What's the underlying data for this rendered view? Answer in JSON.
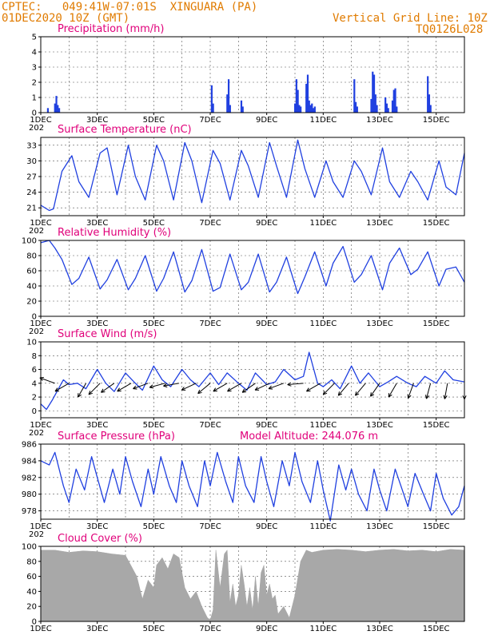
{
  "header": {
    "line1": "CPTEC:   049:41W-07:01S  XINGUARA (PA)",
    "line2": "01DEC2020 10Z (GMT)",
    "grid_note": "Vertical Grid Line: 10Z",
    "code": "TQ0126L028",
    "model_altitude": "Model Altitude: 244.076  m"
  },
  "colors": {
    "line": "#2040e0",
    "bar": "#2040e0",
    "cloud": "#a8a8a8",
    "title": "#e0007a",
    "header": "#e07b00"
  },
  "x_ticks": [
    "1DEC",
    "3DEC",
    "5DEC",
    "7DEC",
    "9DEC",
    "11DEC",
    "13DEC",
    "15DEC"
  ],
  "x_year_fragment": "202",
  "chart_data": [
    {
      "type": "bar",
      "title": "Precipitation (mm/h)",
      "xlim_days": [
        1.0,
        16.0
      ],
      "ylim": [
        0,
        5
      ],
      "yticks": [
        0,
        1,
        2,
        3,
        4,
        5
      ],
      "x": [
        1.25,
        1.5,
        1.55,
        1.6,
        1.65,
        7.05,
        7.1,
        7.6,
        7.65,
        7.7,
        8.1,
        8.15,
        10.0,
        10.05,
        10.1,
        10.15,
        10.2,
        10.4,
        10.45,
        10.5,
        10.55,
        10.6,
        10.65,
        10.7,
        12.1,
        12.15,
        12.2,
        12.7,
        12.75,
        12.8,
        12.85,
        12.9,
        13.2,
        13.25,
        13.3,
        13.45,
        13.5,
        13.55,
        13.6,
        14.7,
        14.75,
        14.8
      ],
      "values": [
        0.3,
        0.6,
        1.1,
        0.5,
        0.3,
        1.8,
        0.6,
        1.2,
        2.2,
        0.5,
        0.8,
        0.4,
        0.6,
        2.2,
        1.5,
        0.5,
        0.4,
        1.9,
        2.5,
        0.8,
        0.5,
        0.6,
        0.3,
        0.4,
        2.2,
        0.7,
        0.4,
        0.9,
        2.7,
        2.5,
        1.2,
        0.5,
        1.0,
        0.6,
        0.3,
        0.8,
        1.5,
        1.6,
        0.4,
        2.4,
        1.2,
        0.5
      ]
    },
    {
      "type": "line",
      "title": "Surface Temperature (nC)",
      "xlim_days": [
        1.0,
        16.0
      ],
      "ylim": [
        19.5,
        34.5
      ],
      "yticks": [
        21,
        24,
        27,
        30,
        33
      ],
      "x": [
        1.0,
        1.3,
        1.45,
        1.75,
        2.1,
        2.35,
        2.7,
        3.1,
        3.35,
        3.7,
        4.1,
        4.35,
        4.7,
        5.1,
        5.35,
        5.7,
        6.1,
        6.35,
        6.7,
        7.1,
        7.35,
        7.7,
        8.1,
        8.35,
        8.7,
        9.1,
        9.35,
        9.7,
        10.1,
        10.35,
        10.7,
        11.1,
        11.35,
        11.7,
        12.1,
        12.35,
        12.7,
        13.1,
        13.35,
        13.7,
        14.1,
        14.35,
        14.7,
        15.1,
        15.35,
        15.7,
        16.0
      ],
      "values": [
        21.5,
        20.5,
        20.8,
        28.0,
        31.0,
        26.0,
        23.0,
        31.5,
        32.5,
        23.5,
        33.0,
        27.0,
        22.5,
        33.0,
        30.0,
        22.5,
        33.5,
        30.0,
        22.0,
        32.0,
        29.5,
        22.5,
        32.0,
        29.0,
        23.0,
        33.5,
        29.0,
        23.0,
        34.0,
        28.5,
        23.0,
        30.0,
        26.0,
        23.0,
        30.0,
        28.0,
        23.5,
        32.5,
        26.0,
        23.0,
        28.0,
        26.0,
        22.5,
        30.0,
        25.0,
        23.5,
        31.5
      ]
    },
    {
      "type": "line",
      "title": "Relative Humidity (%)",
      "xlim_days": [
        1.0,
        16.0
      ],
      "ylim": [
        0,
        100
      ],
      "yticks": [
        0,
        20,
        40,
        60,
        80,
        100
      ],
      "x": [
        1.0,
        1.3,
        1.5,
        1.75,
        2.1,
        2.35,
        2.7,
        3.1,
        3.35,
        3.7,
        4.1,
        4.35,
        4.7,
        5.1,
        5.35,
        5.7,
        6.1,
        6.35,
        6.7,
        7.1,
        7.35,
        7.7,
        8.1,
        8.35,
        8.7,
        9.1,
        9.35,
        9.7,
        10.1,
        10.35,
        10.7,
        11.1,
        11.35,
        11.7,
        12.1,
        12.35,
        12.7,
        13.1,
        13.35,
        13.7,
        14.1,
        14.35,
        14.7,
        15.1,
        15.35,
        15.7,
        16.0
      ],
      "values": [
        97,
        100,
        90,
        75,
        42,
        50,
        78,
        36,
        48,
        75,
        35,
        50,
        80,
        33,
        50,
        85,
        32,
        47,
        88,
        33,
        38,
        82,
        35,
        45,
        82,
        32,
        45,
        78,
        30,
        52,
        85,
        40,
        70,
        92,
        45,
        55,
        80,
        35,
        70,
        90,
        55,
        62,
        85,
        40,
        62,
        65,
        45
      ]
    },
    {
      "type": "line",
      "title": "Surface Wind (m/s)",
      "xlim_days": [
        1.0,
        16.0
      ],
      "ylim": [
        -1,
        10
      ],
      "yticks": [
        0,
        2,
        4,
        6,
        8,
        10
      ],
      "x": [
        1.0,
        1.2,
        1.4,
        1.6,
        1.8,
        2.0,
        2.3,
        2.6,
        3.0,
        3.3,
        3.6,
        4.0,
        4.3,
        4.6,
        5.0,
        5.3,
        5.6,
        6.0,
        6.3,
        6.6,
        7.0,
        7.3,
        7.6,
        8.0,
        8.3,
        8.6,
        9.0,
        9.3,
        9.6,
        10.0,
        10.3,
        10.5,
        10.8,
        11.0,
        11.3,
        11.6,
        12.0,
        12.3,
        12.6,
        13.0,
        13.3,
        13.6,
        14.0,
        14.3,
        14.6,
        15.0,
        15.3,
        15.6,
        16.0
      ],
      "values": [
        1.0,
        0.2,
        1.5,
        3.0,
        4.5,
        3.8,
        4.0,
        3.2,
        6.0,
        4.0,
        2.8,
        5.5,
        4.2,
        3.0,
        6.5,
        4.5,
        3.5,
        6.0,
        4.5,
        3.5,
        5.5,
        3.8,
        5.5,
        4.0,
        3.0,
        5.5,
        3.8,
        4.2,
        6.0,
        4.5,
        5.0,
        8.5,
        4.0,
        3.5,
        4.5,
        3.2,
        6.5,
        4.0,
        5.5,
        3.5,
        4.2,
        5.0,
        4.0,
        3.5,
        5.0,
        4.0,
        5.8,
        4.5,
        4.2
      ],
      "vectors_x": [
        1.5,
        2.0,
        2.6,
        3.1,
        3.6,
        4.2,
        4.8,
        5.4,
        5.9,
        6.5,
        7.0,
        7.6,
        8.1,
        8.6,
        9.1,
        9.6,
        10.3,
        10.9,
        11.4,
        11.9,
        12.5,
        13.0,
        13.6,
        14.2,
        14.8,
        15.4,
        16.0
      ],
      "vectors_angle_deg": [
        200,
        150,
        120,
        135,
        145,
        150,
        160,
        165,
        170,
        155,
        140,
        150,
        150,
        145,
        155,
        160,
        175,
        150,
        135,
        130,
        130,
        125,
        120,
        110,
        105,
        100,
        90
      ]
    },
    {
      "type": "line",
      "title": "Surface Pressure (hPa)",
      "xlim_days": [
        1.0,
        16.0
      ],
      "ylim": [
        977,
        986
      ],
      "yticks": [
        978,
        980,
        982,
        984,
        986
      ],
      "x": [
        1.0,
        1.3,
        1.5,
        1.8,
        2.0,
        2.25,
        2.55,
        2.8,
        3.0,
        3.25,
        3.55,
        3.8,
        4.0,
        4.25,
        4.55,
        4.8,
        5.0,
        5.25,
        5.55,
        5.8,
        6.0,
        6.25,
        6.55,
        6.8,
        7.0,
        7.25,
        7.55,
        7.8,
        8.0,
        8.25,
        8.55,
        8.8,
        9.0,
        9.25,
        9.55,
        9.8,
        10.0,
        10.25,
        10.55,
        10.8,
        11.0,
        11.25,
        11.55,
        11.8,
        12.0,
        12.25,
        12.55,
        12.8,
        13.0,
        13.25,
        13.55,
        13.8,
        14.0,
        14.25,
        14.55,
        14.8,
        15.0,
        15.25,
        15.55,
        15.8,
        16.0
      ],
      "values": [
        984,
        983.5,
        985,
        981,
        979,
        983,
        980.5,
        984.5,
        982,
        979,
        983,
        980,
        984.5,
        981.5,
        978.5,
        983,
        980,
        984.5,
        981,
        979,
        984,
        981,
        978.5,
        984,
        981,
        985,
        981.5,
        979,
        984.5,
        981,
        979,
        984.5,
        981.5,
        978.5,
        984,
        981,
        985,
        981.5,
        979,
        984,
        980.5,
        976.8,
        983.5,
        980.5,
        983,
        980,
        978,
        983,
        980.5,
        978,
        983,
        980.5,
        978.5,
        982.5,
        980,
        978,
        982.5,
        979.5,
        977.5,
        978.5,
        981
      ]
    },
    {
      "type": "area",
      "title": "Cloud Cover (%)",
      "xlim_days": [
        1.0,
        16.0
      ],
      "ylim": [
        0,
        100
      ],
      "yticks": [
        0,
        20,
        40,
        60,
        80,
        100
      ],
      "x": [
        1.0,
        1.5,
        2.0,
        2.5,
        3.0,
        3.5,
        4.0,
        4.4,
        4.6,
        4.8,
        5.0,
        5.1,
        5.3,
        5.5,
        5.7,
        5.9,
        6.1,
        6.3,
        6.5,
        6.7,
        6.9,
        7.0,
        7.1,
        7.2,
        7.35,
        7.5,
        7.6,
        7.7,
        7.8,
        7.9,
        8.0,
        8.1,
        8.2,
        8.3,
        8.4,
        8.5,
        8.6,
        8.7,
        8.8,
        8.9,
        9.0,
        9.1,
        9.2,
        9.3,
        9.4,
        9.6,
        9.8,
        10.0,
        10.2,
        10.4,
        10.6,
        11.0,
        11.5,
        12.0,
        12.5,
        13.0,
        13.5,
        14.0,
        14.5,
        15.0,
        15.5,
        16.0
      ],
      "values": [
        95,
        95,
        92,
        94,
        93,
        90,
        88,
        60,
        30,
        55,
        45,
        75,
        85,
        70,
        90,
        85,
        45,
        30,
        40,
        20,
        5,
        2,
        15,
        95,
        45,
        90,
        95,
        25,
        50,
        20,
        35,
        75,
        50,
        20,
        45,
        15,
        60,
        20,
        65,
        75,
        35,
        50,
        30,
        35,
        10,
        20,
        5,
        35,
        80,
        95,
        92,
        95,
        96,
        95,
        93,
        95,
        96,
        94,
        95,
        93,
        96,
        95
      ]
    }
  ]
}
